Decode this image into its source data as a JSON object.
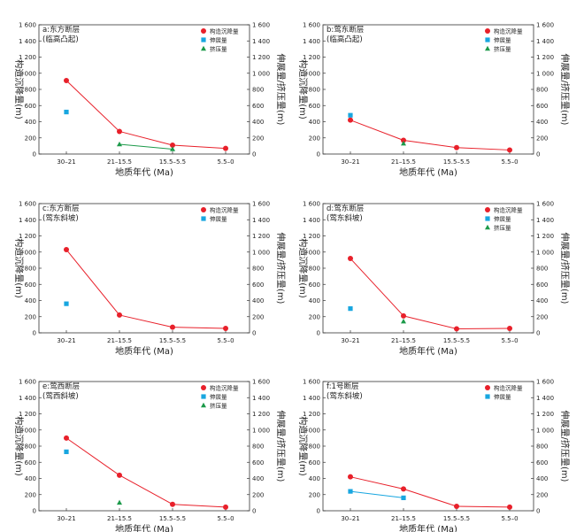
{
  "colors": {
    "subsidence": "#e8202a",
    "extension": "#18a6e0",
    "compression": "#1c9a4a",
    "axis": "#333333"
  },
  "legend_labels": {
    "subsidence": "构造沉降量",
    "extension": "伸展量",
    "compression": "挤压量"
  },
  "axis_titles": {
    "x": "地质年代 (Ma)",
    "left": "构造沉降量(m)",
    "right": "伸展量/挤压量(m)"
  },
  "chart_data": [
    {
      "type": "line",
      "title": "a:东方断层",
      "subtitle": "(临高凸起)",
      "categories": [
        "30–21",
        "21–15.5",
        "15.5–5.5",
        "5.5–0"
      ],
      "ylim_left": [
        0,
        1600
      ],
      "ylim_right": [
        0,
        1600
      ],
      "yticks": [
        0,
        200,
        400,
        600,
        800,
        1000,
        1200,
        1400,
        1600
      ],
      "yticklabels": [
        "0",
        "200",
        "400",
        "600",
        "800",
        "1 000",
        "1 200",
        "1 400",
        "1 600"
      ],
      "legend": [
        "subsidence",
        "extension",
        "compression"
      ],
      "series": [
        {
          "key": "subsidence",
          "name": "构造沉降量",
          "values": [
            910,
            280,
            110,
            70
          ]
        },
        {
          "key": "extension",
          "name": "伸展量",
          "values": [
            520,
            null,
            null,
            null
          ]
        },
        {
          "key": "compression",
          "name": "挤压量",
          "values": [
            null,
            120,
            60,
            null
          ]
        }
      ]
    },
    {
      "type": "line",
      "title": "b:莺东断层",
      "subtitle": "(临高凸起)",
      "categories": [
        "30–21",
        "21–15.5",
        "15.5–5.5",
        "5.5–0"
      ],
      "ylim_left": [
        0,
        1600
      ],
      "ylim_right": [
        0,
        1600
      ],
      "yticks": [
        0,
        200,
        400,
        600,
        800,
        1000,
        1200,
        1400,
        1600
      ],
      "yticklabels": [
        "0",
        "200",
        "400",
        "600",
        "800",
        "1 000",
        "1 200",
        "1 400",
        "1 600"
      ],
      "legend": [
        "subsidence",
        "extension",
        "compression"
      ],
      "series": [
        {
          "key": "subsidence",
          "name": "构造沉降量",
          "values": [
            420,
            170,
            80,
            50
          ]
        },
        {
          "key": "extension",
          "name": "伸展量",
          "values": [
            480,
            null,
            null,
            null
          ]
        },
        {
          "key": "compression",
          "name": "挤压量",
          "values": [
            null,
            130,
            null,
            null
          ]
        }
      ]
    },
    {
      "type": "line",
      "title": "c:东方断层",
      "subtitle": "(莺东斜坡)",
      "categories": [
        "30–21",
        "21–15.5",
        "15.5–5.5",
        "5.5–0"
      ],
      "ylim_left": [
        0,
        1600
      ],
      "ylim_right": [
        0,
        1600
      ],
      "yticks": [
        0,
        200,
        400,
        600,
        800,
        1000,
        1200,
        1400,
        1600
      ],
      "yticklabels": [
        "0",
        "200",
        "400",
        "600",
        "800",
        "1 000",
        "1 200",
        "1 400",
        "1 600"
      ],
      "legend": [
        "subsidence",
        "extension"
      ],
      "series": [
        {
          "key": "subsidence",
          "name": "构造沉降量",
          "values": [
            1030,
            220,
            70,
            55
          ]
        },
        {
          "key": "extension",
          "name": "伸展量",
          "values": [
            360,
            null,
            null,
            null
          ]
        }
      ]
    },
    {
      "type": "line",
      "title": "d:莺东断层",
      "subtitle": "(莺东斜坡)",
      "categories": [
        "30–21",
        "21–15.5",
        "15.5–5.5",
        "5.5–0"
      ],
      "ylim_left": [
        0,
        1600
      ],
      "ylim_right": [
        0,
        1600
      ],
      "yticks": [
        0,
        200,
        400,
        600,
        800,
        1000,
        1200,
        1400,
        1600
      ],
      "yticklabels": [
        "0",
        "200",
        "400",
        "600",
        "800",
        "1 000",
        "1 200",
        "1 400",
        "1 600"
      ],
      "legend": [
        "subsidence",
        "extension",
        "compression"
      ],
      "series": [
        {
          "key": "subsidence",
          "name": "构造沉降量",
          "values": [
            920,
            210,
            50,
            55
          ]
        },
        {
          "key": "extension",
          "name": "伸展量",
          "values": [
            300,
            null,
            null,
            null
          ]
        },
        {
          "key": "compression",
          "name": "挤压量",
          "values": [
            null,
            140,
            null,
            null
          ]
        }
      ]
    },
    {
      "type": "line",
      "title": "e:莺西断层",
      "subtitle": "(莺西斜坡)",
      "categories": [
        "30–21",
        "21–15.5",
        "15.5–5.5",
        "5.5–0"
      ],
      "ylim_left": [
        0,
        1600
      ],
      "ylim_right": [
        0,
        1600
      ],
      "yticks": [
        0,
        200,
        400,
        600,
        800,
        1000,
        1200,
        1400,
        1600
      ],
      "yticklabels": [
        "0",
        "200",
        "400",
        "600",
        "800",
        "1 000",
        "1 200",
        "1 400",
        "1 600"
      ],
      "legend": [
        "subsidence",
        "extension",
        "compression"
      ],
      "series": [
        {
          "key": "subsidence",
          "name": "构造沉降量",
          "values": [
            900,
            440,
            80,
            45
          ]
        },
        {
          "key": "extension",
          "name": "伸展量",
          "values": [
            730,
            null,
            null,
            null
          ]
        },
        {
          "key": "compression",
          "name": "挤压量",
          "values": [
            null,
            100,
            null,
            null
          ]
        }
      ]
    },
    {
      "type": "line",
      "title": "f:1号断层",
      "subtitle": "(莺东斜坡)",
      "categories": [
        "30–21",
        "21–15.5",
        "15.5–5.5",
        "5.5–0"
      ],
      "ylim_left": [
        0,
        1600
      ],
      "ylim_right": [
        0,
        1600
      ],
      "yticks": [
        0,
        200,
        400,
        600,
        800,
        1000,
        1200,
        1400,
        1600
      ],
      "yticklabels": [
        "0",
        "200",
        "400",
        "600",
        "800",
        "1 000",
        "1 200",
        "1 400",
        "1 600"
      ],
      "legend": [
        "subsidence",
        "extension"
      ],
      "series": [
        {
          "key": "subsidence",
          "name": "构造沉降量",
          "values": [
            420,
            270,
            55,
            45
          ]
        },
        {
          "key": "extension",
          "name": "伸展量",
          "values": [
            240,
            160,
            null,
            null
          ]
        }
      ]
    }
  ]
}
